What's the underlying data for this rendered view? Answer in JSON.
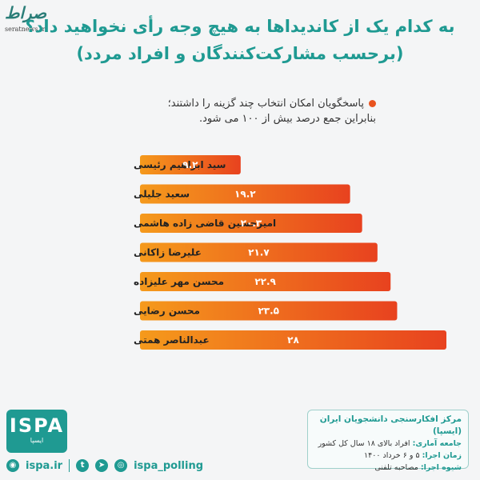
{
  "title": {
    "line1": "به کدام یک از کاندیداها به هیچ وجه رأی نخواهید داد؟",
    "line2": "(برحسب مشارکت‌کنندگان و افراد مردد)"
  },
  "watermark": {
    "logo": "صراط",
    "url": "seratnews.ir"
  },
  "note": {
    "line1": "پاسخگویان امکان انتخاب چند گزینه را داشتند؛",
    "line2": "بنابراین جمع درصد بیش از ۱۰۰ می شود."
  },
  "chart_data": {
    "type": "bar",
    "orientation": "horizontal",
    "categories": [
      "سید ابراهیم رئیسی",
      "سعید جلیلی",
      "امیرحسین قاضی زاده هاشمی",
      "علیرضا زاکانی",
      "محسن مهر علیزاده",
      "محسن رضایی",
      "عبدالناصر همتی"
    ],
    "values": [
      9.2,
      19.2,
      20.3,
      21.7,
      22.9,
      23.5,
      28
    ],
    "value_labels": [
      "۹.۲",
      "۱۹.۲",
      "۲۰.۳",
      "۲۱.۷",
      "۲۲.۹",
      "۲۳.۵",
      "۲۸"
    ],
    "xlim": [
      0,
      28
    ],
    "grid": false,
    "colors": {
      "gradient_start": "#e8421f",
      "gradient_end": "#f59a1c"
    }
  },
  "footer": {
    "center": "مرکز افکارسنجی دانشجویان ایران (ایسپا)",
    "population_label": "جامعه آماری:",
    "population": "افراد بالای ۱۸ سال کل کشور",
    "time_label": "زمان اجرا:",
    "time": "۵ و ۶ خرداد ۱۴۰۰",
    "method_label": "شیوه اجرا:",
    "method": "مصاحبه تلفنی"
  },
  "logo": {
    "main": "ISPA",
    "sub": "ایسپا"
  },
  "socials": {
    "site": "ispa.ir",
    "handle": "ispa_polling"
  },
  "icons": [
    "globe-icon",
    "twitter-icon",
    "telegram-icon",
    "instagram-icon"
  ],
  "accent_color": "#1f9a92"
}
